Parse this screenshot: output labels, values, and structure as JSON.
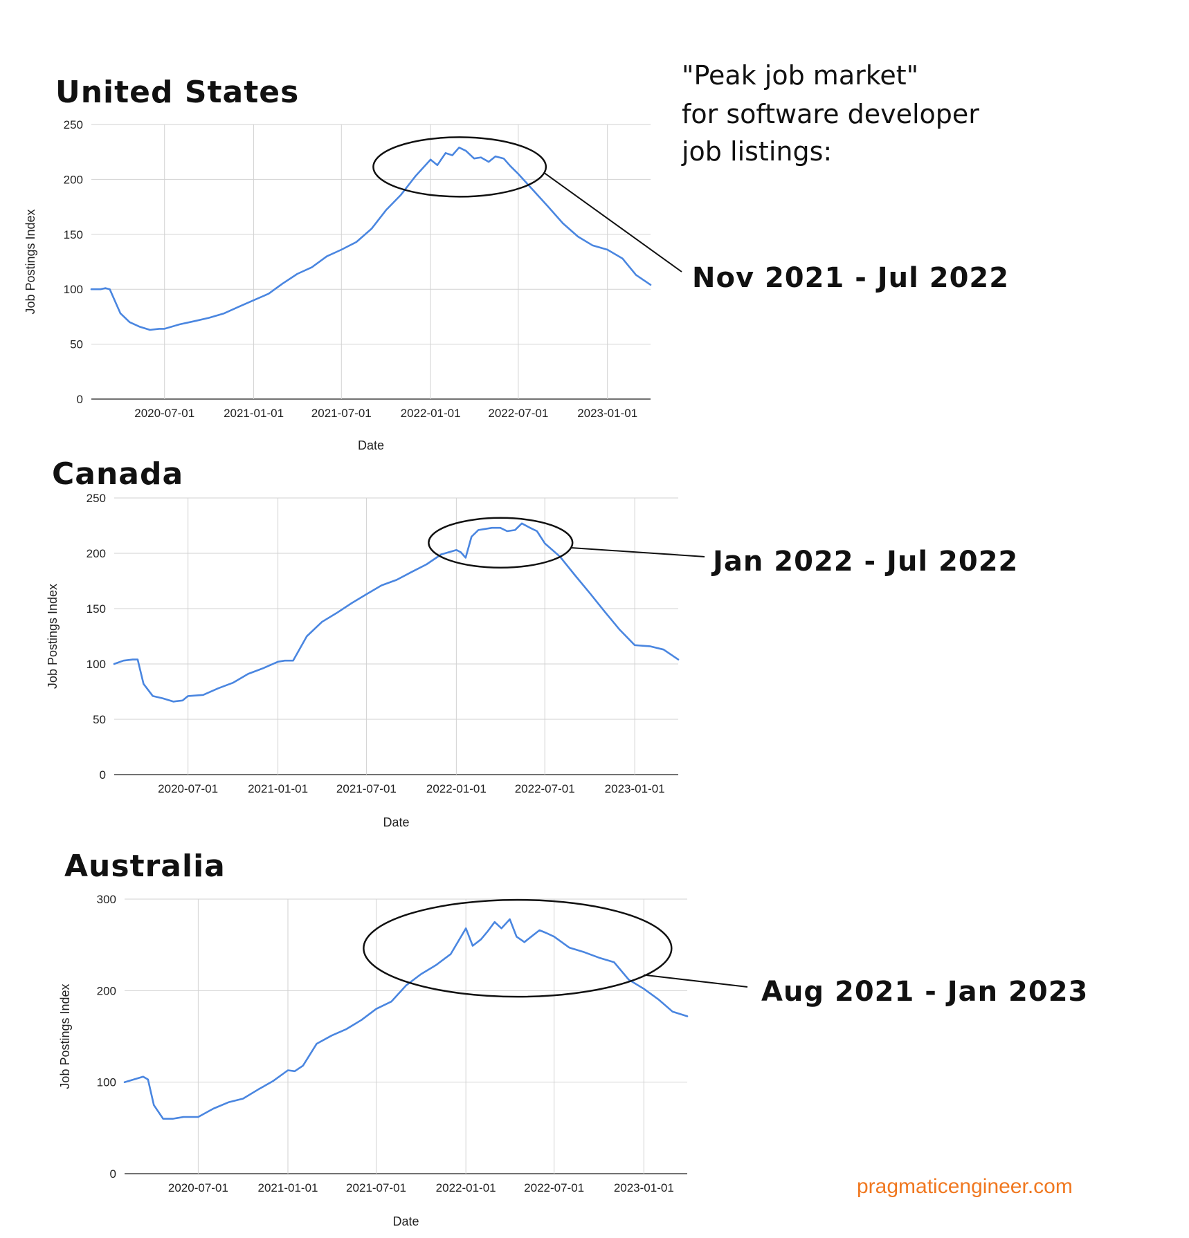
{
  "note": {
    "lines": [
      "\"Peak job market\"",
      "for software developer",
      "job listings:"
    ]
  },
  "brand": "pragmaticengineer.com",
  "colors": {
    "line": "#4a86e0",
    "grid": "#d2d2d2",
    "brand": "#f07820"
  },
  "chart_data": [
    {
      "type": "line",
      "title": "United States",
      "xlabel": "Date",
      "ylabel": "Job Postings Index",
      "x_ticks": [
        "2020-07-01",
        "2021-01-01",
        "2021-07-01",
        "2022-01-01",
        "2022-07-01",
        "2023-01-01"
      ],
      "xlim": [
        "2020-02-01",
        "2023-03-31"
      ],
      "ylim": [
        0,
        250
      ],
      "y_ticks": [
        0,
        50,
        100,
        150,
        200,
        250
      ],
      "grid": true,
      "annotation": {
        "label": "Nov 2021 - Jul 2022",
        "start": "2021-11-01",
        "end": "2022-07-01"
      },
      "x": [
        "2020-02-01",
        "2020-02-20",
        "2020-03-01",
        "2020-03-10",
        "2020-03-20",
        "2020-04-01",
        "2020-04-20",
        "2020-05-10",
        "2020-06-01",
        "2020-06-20",
        "2020-07-01",
        "2020-08-01",
        "2020-09-01",
        "2020-10-01",
        "2020-11-01",
        "2020-12-01",
        "2021-01-01",
        "2021-02-01",
        "2021-03-01",
        "2021-04-01",
        "2021-05-01",
        "2021-06-01",
        "2021-07-01",
        "2021-08-01",
        "2021-09-01",
        "2021-10-01",
        "2021-11-01",
        "2021-12-01",
        "2022-01-01",
        "2022-01-15",
        "2022-02-01",
        "2022-02-15",
        "2022-03-01",
        "2022-03-15",
        "2022-04-01",
        "2022-04-15",
        "2022-05-01",
        "2022-05-15",
        "2022-06-01",
        "2022-06-15",
        "2022-07-01",
        "2022-08-01",
        "2022-09-01",
        "2022-10-01",
        "2022-11-01",
        "2022-12-01",
        "2023-01-01",
        "2023-02-01",
        "2023-03-01",
        "2023-03-31"
      ],
      "y": [
        100,
        100,
        101,
        100,
        90,
        78,
        70,
        66,
        63,
        64,
        64,
        68,
        71,
        74,
        78,
        84,
        90,
        96,
        105,
        114,
        120,
        130,
        136,
        143,
        155,
        172,
        186,
        203,
        218,
        213,
        224,
        222,
        229,
        226,
        219,
        220,
        216,
        221,
        219,
        212,
        205,
        190,
        175,
        160,
        148,
        140,
        136,
        128,
        113,
        104
      ]
    },
    {
      "type": "line",
      "title": "Canada",
      "xlabel": "Date",
      "ylabel": "Job Postings Index",
      "x_ticks": [
        "2020-07-01",
        "2021-01-01",
        "2021-07-01",
        "2022-01-01",
        "2022-07-01",
        "2023-01-01"
      ],
      "xlim": [
        "2020-02-01",
        "2023-03-31"
      ],
      "ylim": [
        0,
        250
      ],
      "y_ticks": [
        0,
        50,
        100,
        150,
        200,
        250
      ],
      "grid": true,
      "annotation": {
        "label": "Jan 2022 - Jul 2022",
        "start": "2022-01-01",
        "end": "2022-07-01"
      },
      "x": [
        "2020-02-01",
        "2020-02-20",
        "2020-03-10",
        "2020-03-20",
        "2020-04-01",
        "2020-04-20",
        "2020-05-10",
        "2020-06-01",
        "2020-06-20",
        "2020-07-01",
        "2020-08-01",
        "2020-09-01",
        "2020-10-01",
        "2020-11-01",
        "2020-12-01",
        "2021-01-01",
        "2021-01-15",
        "2021-02-01",
        "2021-03-01",
        "2021-04-01",
        "2021-05-01",
        "2021-06-01",
        "2021-07-01",
        "2021-08-01",
        "2021-09-01",
        "2021-10-01",
        "2021-11-01",
        "2021-12-01",
        "2022-01-01",
        "2022-01-10",
        "2022-01-20",
        "2022-02-01",
        "2022-02-15",
        "2022-03-01",
        "2022-03-15",
        "2022-04-01",
        "2022-04-15",
        "2022-05-01",
        "2022-05-15",
        "2022-06-01",
        "2022-06-15",
        "2022-07-01",
        "2022-08-01",
        "2022-09-01",
        "2022-10-01",
        "2022-11-01",
        "2022-12-01",
        "2023-01-01",
        "2023-02-01",
        "2023-03-01",
        "2023-03-31"
      ],
      "y": [
        100,
        103,
        104,
        104,
        82,
        71,
        69,
        66,
        67,
        71,
        72,
        78,
        83,
        91,
        96,
        102,
        103,
        103,
        125,
        138,
        146,
        155,
        163,
        171,
        176,
        183,
        190,
        199,
        203,
        201,
        196,
        215,
        221,
        222,
        223,
        223,
        220,
        221,
        227,
        223,
        220,
        209,
        197,
        180,
        164,
        147,
        131,
        117,
        116,
        113,
        104
      ]
    },
    {
      "type": "line",
      "title": "Australia",
      "xlabel": "Date",
      "ylabel": "Job Postings Index",
      "x_ticks": [
        "2020-07-01",
        "2021-01-01",
        "2021-07-01",
        "2022-01-01",
        "2022-07-01",
        "2023-01-01"
      ],
      "xlim": [
        "2020-02-01",
        "2023-03-31"
      ],
      "ylim": [
        0,
        300
      ],
      "y_ticks": [
        0,
        100,
        200,
        300
      ],
      "grid": true,
      "annotation": {
        "label": "Aug 2021 - Jan 2023",
        "start": "2021-08-01",
        "end": "2023-01-01"
      },
      "x": [
        "2020-02-01",
        "2020-02-20",
        "2020-03-10",
        "2020-03-20",
        "2020-04-01",
        "2020-04-20",
        "2020-05-10",
        "2020-06-01",
        "2020-06-20",
        "2020-07-01",
        "2020-08-01",
        "2020-09-01",
        "2020-10-01",
        "2020-11-01",
        "2020-12-01",
        "2021-01-01",
        "2021-01-15",
        "2021-02-01",
        "2021-03-01",
        "2021-04-01",
        "2021-05-01",
        "2021-06-01",
        "2021-07-01",
        "2021-08-01",
        "2021-09-01",
        "2021-10-01",
        "2021-11-01",
        "2021-12-01",
        "2022-01-01",
        "2022-01-15",
        "2022-02-01",
        "2022-02-15",
        "2022-03-01",
        "2022-03-15",
        "2022-04-01",
        "2022-04-15",
        "2022-05-01",
        "2022-05-15",
        "2022-06-01",
        "2022-06-15",
        "2022-07-01",
        "2022-08-01",
        "2022-09-01",
        "2022-10-01",
        "2022-11-01",
        "2022-12-01",
        "2023-01-01",
        "2023-02-01",
        "2023-03-01",
        "2023-03-31"
      ],
      "y": [
        100,
        103,
        106,
        103,
        75,
        60,
        60,
        62,
        62,
        62,
        71,
        78,
        82,
        92,
        101,
        113,
        112,
        118,
        142,
        151,
        158,
        168,
        180,
        188,
        206,
        218,
        228,
        240,
        268,
        249,
        256,
        265,
        275,
        268,
        278,
        259,
        253,
        259,
        266,
        263,
        259,
        247,
        242,
        236,
        231,
        212,
        202,
        190,
        177,
        172
      ]
    }
  ]
}
